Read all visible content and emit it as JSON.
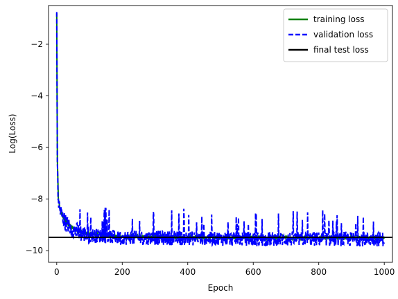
{
  "chart_data": {
    "type": "line",
    "title": "",
    "xlabel": "Epoch",
    "ylabel": "Log(Loss)",
    "xlim": [
      -25,
      1025
    ],
    "ylim": [
      -10.45,
      -0.5
    ],
    "xticks": [
      0,
      200,
      400,
      600,
      800,
      1000
    ],
    "yticks": [
      -10,
      -8,
      -6,
      -4,
      -2
    ],
    "xtick_labels": [
      "0",
      "200",
      "400",
      "600",
      "800",
      "1000"
    ],
    "ytick_labels": [
      "−10",
      "−8",
      "−6",
      "−4",
      "−2"
    ],
    "grid": false,
    "legend_position": "top-right",
    "series": [
      {
        "name": "training loss",
        "style": "solid",
        "color": "#008000",
        "x": [
          0,
          2,
          5,
          10,
          20,
          30,
          40,
          60,
          80,
          100,
          150,
          200,
          300,
          400,
          500,
          600,
          700,
          800,
          900,
          1000
        ],
        "y": [
          -0.8,
          -6.5,
          -8.0,
          -8.4,
          -8.7,
          -8.9,
          -9.05,
          -9.2,
          -9.3,
          -9.35,
          -9.42,
          -9.45,
          -9.47,
          -9.48,
          -9.49,
          -9.5,
          -9.5,
          -9.5,
          -9.5,
          -9.5
        ]
      },
      {
        "name": "validation loss",
        "style": "dashed",
        "color": "#0000ff",
        "x": [
          0,
          2,
          5,
          10,
          20,
          30,
          40,
          60,
          80,
          100,
          150,
          200,
          300,
          400,
          500,
          600,
          700,
          800,
          900,
          1000
        ],
        "y": [
          -0.75,
          -6.6,
          -8.05,
          -8.45,
          -8.75,
          -8.95,
          -9.1,
          -9.25,
          -9.35,
          -9.4,
          -9.45,
          -9.5,
          -9.5,
          -9.52,
          -9.53,
          -9.55,
          -9.55,
          -9.55,
          -9.55,
          -9.55
        ],
        "noise_range": [
          -9.95,
          -8.4
        ]
      },
      {
        "name": "final test loss",
        "style": "solid",
        "color": "#000000",
        "hline": -9.48
      }
    ]
  }
}
